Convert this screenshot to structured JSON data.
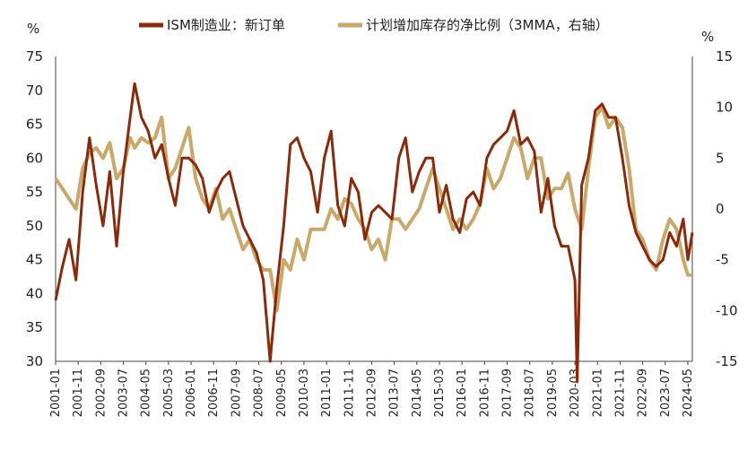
{
  "chart_data": {
    "type": "line",
    "y_left_unit": "%",
    "y_right_unit": "%",
    "ylim_left": [
      30,
      75
    ],
    "ylim_right": [
      -15,
      15
    ],
    "yticks_left": [
      "75",
      "70",
      "65",
      "60",
      "55",
      "50",
      "45",
      "40",
      "35",
      "30"
    ],
    "yticks_right": [
      "15",
      "10",
      "5",
      "0",
      "-5",
      "-10",
      "-15"
    ],
    "x_tick_labels": [
      "2001-01",
      "2001-11",
      "2002-09",
      "2003-07",
      "2004-05",
      "2005-03",
      "2006-01",
      "2006-11",
      "2007-09",
      "2008-07",
      "2009-05",
      "2010-03",
      "2011-01",
      "2011-11",
      "2012-09",
      "2013-07",
      "2014-05",
      "2015-03",
      "2016-01",
      "2016-11",
      "2017-09",
      "2018-07",
      "2019-05",
      "2020-03",
      "2021-01",
      "2021-11",
      "2022-09",
      "2023-07",
      "2024-05"
    ],
    "x_range": [
      "2001-01",
      "2024-07"
    ],
    "grid": false,
    "legend_position": "top-center",
    "series": [
      {
        "name": "ISM制造业：新订单",
        "axis": "left",
        "color": "#8B2A0A",
        "points": [
          [
            "2001-01",
            39.0
          ],
          [
            "2001-04",
            44.0
          ],
          [
            "2001-07",
            48.0
          ],
          [
            "2001-10",
            42.0
          ],
          [
            "2002-01",
            55.0
          ],
          [
            "2002-04",
            63.0
          ],
          [
            "2002-07",
            56.0
          ],
          [
            "2002-10",
            50.0
          ],
          [
            "2003-01",
            58.0
          ],
          [
            "2003-04",
            47.0
          ],
          [
            "2003-07",
            58.0
          ],
          [
            "2003-10",
            66.0
          ],
          [
            "2003-12",
            71.0
          ],
          [
            "2004-03",
            66.0
          ],
          [
            "2004-06",
            64.0
          ],
          [
            "2004-09",
            60.0
          ],
          [
            "2004-12",
            62.0
          ],
          [
            "2005-03",
            57.0
          ],
          [
            "2005-06",
            53.0
          ],
          [
            "2005-09",
            60.0
          ],
          [
            "2005-12",
            60.0
          ],
          [
            "2006-03",
            59.0
          ],
          [
            "2006-06",
            57.0
          ],
          [
            "2006-09",
            52.0
          ],
          [
            "2006-12",
            55.0
          ],
          [
            "2007-03",
            57.0
          ],
          [
            "2007-06",
            58.0
          ],
          [
            "2007-09",
            54.0
          ],
          [
            "2007-12",
            50.0
          ],
          [
            "2008-03",
            48.0
          ],
          [
            "2008-06",
            46.0
          ],
          [
            "2008-09",
            42.0
          ],
          [
            "2008-12",
            30.0
          ],
          [
            "2009-03",
            41.0
          ],
          [
            "2009-06",
            50.0
          ],
          [
            "2009-09",
            62.0
          ],
          [
            "2009-12",
            63.0
          ],
          [
            "2010-03",
            60.0
          ],
          [
            "2010-06",
            58.0
          ],
          [
            "2010-09",
            52.0
          ],
          [
            "2010-12",
            60.0
          ],
          [
            "2011-03",
            64.0
          ],
          [
            "2011-06",
            53.0
          ],
          [
            "2011-09",
            50.0
          ],
          [
            "2011-12",
            57.0
          ],
          [
            "2012-03",
            55.0
          ],
          [
            "2012-06",
            48.0
          ],
          [
            "2012-09",
            52.0
          ],
          [
            "2012-12",
            53.0
          ],
          [
            "2013-03",
            52.0
          ],
          [
            "2013-06",
            51.0
          ],
          [
            "2013-09",
            60.0
          ],
          [
            "2013-12",
            63.0
          ],
          [
            "2014-03",
            55.0
          ],
          [
            "2014-06",
            58.0
          ],
          [
            "2014-09",
            60.0
          ],
          [
            "2014-12",
            60.0
          ],
          [
            "2015-03",
            52.0
          ],
          [
            "2015-06",
            56.0
          ],
          [
            "2015-09",
            51.0
          ],
          [
            "2015-12",
            49.0
          ],
          [
            "2016-03",
            54.0
          ],
          [
            "2016-06",
            55.0
          ],
          [
            "2016-09",
            53.0
          ],
          [
            "2016-12",
            60.0
          ],
          [
            "2017-03",
            62.0
          ],
          [
            "2017-06",
            63.0
          ],
          [
            "2017-09",
            64.0
          ],
          [
            "2017-12",
            67.0
          ],
          [
            "2018-03",
            62.0
          ],
          [
            "2018-06",
            63.0
          ],
          [
            "2018-09",
            61.0
          ],
          [
            "2018-12",
            52.0
          ],
          [
            "2019-03",
            57.0
          ],
          [
            "2019-06",
            50.0
          ],
          [
            "2019-09",
            47.0
          ],
          [
            "2019-12",
            47.0
          ],
          [
            "2020-03",
            42.0
          ],
          [
            "2020-04",
            27.0
          ],
          [
            "2020-06",
            56.0
          ],
          [
            "2020-09",
            60.0
          ],
          [
            "2020-12",
            67.0
          ],
          [
            "2021-03",
            68.0
          ],
          [
            "2021-06",
            66.0
          ],
          [
            "2021-09",
            66.0
          ],
          [
            "2021-12",
            60.0
          ],
          [
            "2022-03",
            53.0
          ],
          [
            "2022-06",
            49.0
          ],
          [
            "2022-09",
            47.0
          ],
          [
            "2022-12",
            45.0
          ],
          [
            "2023-03",
            44.0
          ],
          [
            "2023-06",
            45.0
          ],
          [
            "2023-09",
            49.0
          ],
          [
            "2023-12",
            47.0
          ],
          [
            "2024-03",
            51.0
          ],
          [
            "2024-05",
            45.0
          ],
          [
            "2024-07",
            49.0
          ]
        ]
      },
      {
        "name": "计划增加库存的净比例（3MMA，右轴）",
        "axis": "right",
        "color": "#C8A96A",
        "points": [
          [
            "2001-01",
            3.0
          ],
          [
            "2001-04",
            2.0
          ],
          [
            "2001-07",
            1.0
          ],
          [
            "2001-10",
            0.0
          ],
          [
            "2002-01",
            4.0
          ],
          [
            "2002-04",
            5.5
          ],
          [
            "2002-07",
            6.0
          ],
          [
            "2002-10",
            5.0
          ],
          [
            "2003-01",
            6.5
          ],
          [
            "2003-04",
            3.0
          ],
          [
            "2003-07",
            4.0
          ],
          [
            "2003-10",
            7.0
          ],
          [
            "2003-12",
            6.0
          ],
          [
            "2004-03",
            7.0
          ],
          [
            "2004-06",
            6.5
          ],
          [
            "2004-09",
            7.0
          ],
          [
            "2004-12",
            9.0
          ],
          [
            "2005-03",
            3.0
          ],
          [
            "2005-06",
            4.0
          ],
          [
            "2005-09",
            6.0
          ],
          [
            "2005-12",
            8.0
          ],
          [
            "2006-03",
            3.0
          ],
          [
            "2006-06",
            1.0
          ],
          [
            "2006-09",
            0.0
          ],
          [
            "2006-12",
            2.0
          ],
          [
            "2007-03",
            -1.0
          ],
          [
            "2007-06",
            0.0
          ],
          [
            "2007-09",
            -2.0
          ],
          [
            "2007-12",
            -4.0
          ],
          [
            "2008-03",
            -3.0
          ],
          [
            "2008-06",
            -5.0
          ],
          [
            "2008-09",
            -6.0
          ],
          [
            "2008-12",
            -6.0
          ],
          [
            "2009-03",
            -10.0
          ],
          [
            "2009-06",
            -5.0
          ],
          [
            "2009-09",
            -6.0
          ],
          [
            "2009-12",
            -3.0
          ],
          [
            "2010-03",
            -5.0
          ],
          [
            "2010-06",
            -2.0
          ],
          [
            "2010-09",
            -2.0
          ],
          [
            "2010-12",
            -2.0
          ],
          [
            "2011-03",
            0.0
          ],
          [
            "2011-06",
            -1.0
          ],
          [
            "2011-09",
            1.0
          ],
          [
            "2011-12",
            0.5
          ],
          [
            "2012-03",
            -1.0
          ],
          [
            "2012-06",
            -2.0
          ],
          [
            "2012-09",
            -4.0
          ],
          [
            "2012-12",
            -3.0
          ],
          [
            "2013-03",
            -5.0
          ],
          [
            "2013-06",
            -1.0
          ],
          [
            "2013-09",
            -1.0
          ],
          [
            "2013-12",
            -2.0
          ],
          [
            "2014-03",
            -1.0
          ],
          [
            "2014-06",
            0.0
          ],
          [
            "2014-09",
            2.0
          ],
          [
            "2014-12",
            4.0
          ],
          [
            "2015-03",
            2.0
          ],
          [
            "2015-06",
            0.0
          ],
          [
            "2015-09",
            -2.0
          ],
          [
            "2015-12",
            -1.0
          ],
          [
            "2016-03",
            -2.0
          ],
          [
            "2016-06",
            -1.0
          ],
          [
            "2016-09",
            0.5
          ],
          [
            "2016-12",
            4.0
          ],
          [
            "2017-03",
            2.0
          ],
          [
            "2017-06",
            3.0
          ],
          [
            "2017-09",
            5.0
          ],
          [
            "2017-12",
            7.0
          ],
          [
            "2018-03",
            6.0
          ],
          [
            "2018-06",
            3.0
          ],
          [
            "2018-09",
            5.0
          ],
          [
            "2018-12",
            5.0
          ],
          [
            "2019-03",
            1.0
          ],
          [
            "2019-06",
            2.0
          ],
          [
            "2019-09",
            2.0
          ],
          [
            "2019-12",
            3.5
          ],
          [
            "2020-03",
            0.0
          ],
          [
            "2020-06",
            -2.0
          ],
          [
            "2020-09",
            4.0
          ],
          [
            "2020-12",
            9.0
          ],
          [
            "2021-03",
            10.0
          ],
          [
            "2021-06",
            8.0
          ],
          [
            "2021-09",
            9.0
          ],
          [
            "2021-12",
            8.0
          ],
          [
            "2022-03",
            4.0
          ],
          [
            "2022-06",
            -2.0
          ],
          [
            "2022-09",
            -3.0
          ],
          [
            "2022-12",
            -5.0
          ],
          [
            "2023-03",
            -6.0
          ],
          [
            "2023-06",
            -3.0
          ],
          [
            "2023-09",
            -1.0
          ],
          [
            "2023-12",
            -2.0
          ],
          [
            "2024-03",
            -5.0
          ],
          [
            "2024-05",
            -6.5
          ],
          [
            "2024-07",
            -6.5
          ]
        ]
      }
    ]
  }
}
